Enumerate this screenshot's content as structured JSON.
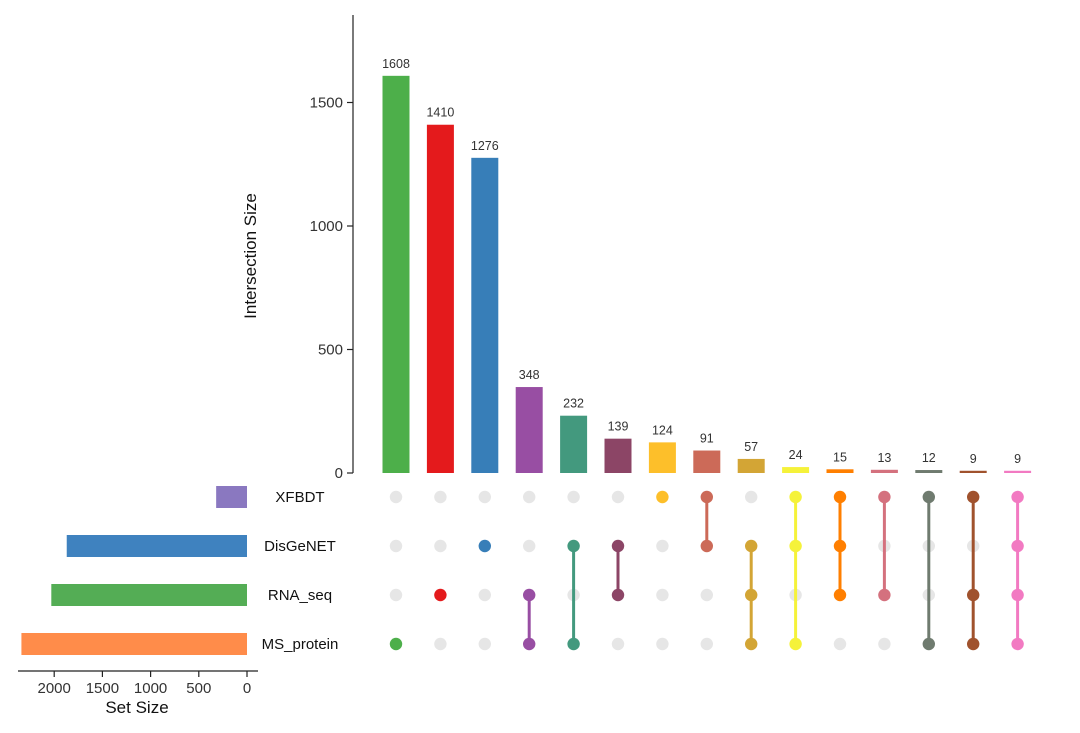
{
  "chart_data": {
    "type": "upset",
    "y_title": "Intersection Size",
    "y_ticks": [
      0,
      500,
      1000,
      1500
    ],
    "y_max": 1850,
    "x_title": "Set Size",
    "set_ticks": [
      2000,
      1500,
      1000,
      500,
      0
    ],
    "set_max": 2400,
    "sets": [
      {
        "name": "XFBDT",
        "size": 320,
        "color": "#8a78c0"
      },
      {
        "name": "DisGeNET",
        "size": 1870,
        "color": "#3f82bf"
      },
      {
        "name": "RNA_seq",
        "size": 2030,
        "color": "#54ad55"
      },
      {
        "name": "MS_protein",
        "size": 2340,
        "color": "#ff8c4a"
      }
    ],
    "intersections": [
      {
        "size": 1608,
        "color": "#4daf4a",
        "members": [
          "MS_protein"
        ]
      },
      {
        "size": 1410,
        "color": "#e41a1c",
        "members": [
          "RNA_seq"
        ]
      },
      {
        "size": 1276,
        "color": "#377eb8",
        "members": [
          "DisGeNET"
        ]
      },
      {
        "size": 348,
        "color": "#984ea3",
        "members": [
          "RNA_seq",
          "MS_protein"
        ]
      },
      {
        "size": 232,
        "color": "#43997e",
        "members": [
          "DisGeNET",
          "MS_protein"
        ]
      },
      {
        "size": 139,
        "color": "#8c4566",
        "members": [
          "DisGeNET",
          "RNA_seq"
        ]
      },
      {
        "size": 124,
        "color": "#fdbf2a",
        "members": [
          "XFBDT"
        ]
      },
      {
        "size": 91,
        "color": "#cc6a58",
        "members": [
          "XFBDT",
          "DisGeNET"
        ]
      },
      {
        "size": 57,
        "color": "#d3a535",
        "members": [
          "DisGeNET",
          "RNA_seq",
          "MS_protein"
        ]
      },
      {
        "size": 24,
        "color": "#f5f23a",
        "members": [
          "XFBDT",
          "DisGeNET",
          "MS_protein"
        ]
      },
      {
        "size": 15,
        "color": "#ff7f00",
        "members": [
          "XFBDT",
          "DisGeNET",
          "RNA_seq"
        ]
      },
      {
        "size": 13,
        "color": "#d4717e",
        "members": [
          "XFBDT",
          "RNA_seq"
        ]
      },
      {
        "size": 12,
        "color": "#6f7b6f",
        "members": [
          "XFBDT",
          "MS_protein"
        ]
      },
      {
        "size": 9,
        "color": "#a0522d",
        "members": [
          "XFBDT",
          "RNA_seq",
          "MS_protein"
        ]
      },
      {
        "size": 9,
        "color": "#f27ac2",
        "members": [
          "XFBDT",
          "DisGeNET",
          "RNA_seq",
          "MS_protein"
        ]
      }
    ],
    "inactive_dot_color": "#e6e6e6"
  }
}
